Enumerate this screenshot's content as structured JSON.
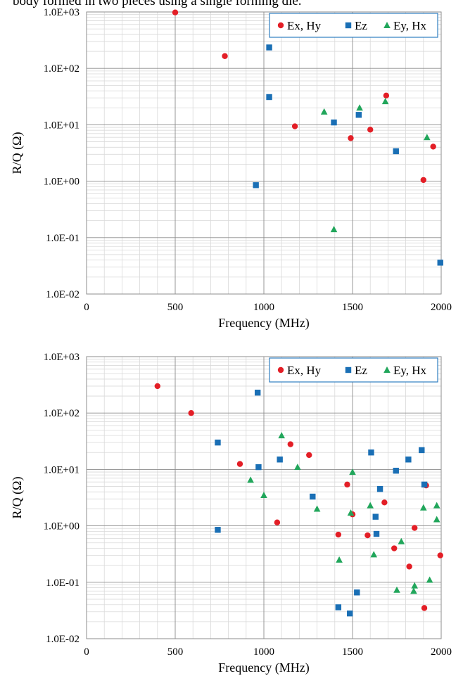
{
  "page_text": {
    "top_line": "body formed in two pieces using a single forming die."
  },
  "colors": {
    "ex_hy": "#e31e26",
    "ez": "#1a6fb5",
    "ey_hx": "#21a65b",
    "legend_border": "#2f7ec1",
    "grid_minor": "#d9d9d9",
    "grid_major": "#8c8c8c"
  },
  "chart_data": [
    {
      "type": "scatter",
      "xlabel": "Frequency (MHz)",
      "ylabel": "R/Q (Ω)",
      "xlim": [
        0,
        2000
      ],
      "ylim": [
        0.01,
        1000
      ],
      "y_scale": "log",
      "x_ticks": [
        "0",
        "500",
        "1000",
        "1500",
        "2000"
      ],
      "y_ticks": [
        "1.0E-02",
        "1.0E-01",
        "1.0E+00",
        "1.0E+01",
        "1.0E+02",
        "1.0E+03"
      ],
      "grid": true,
      "legend_position": "top-right",
      "series": [
        {
          "name": "Ex, Hy",
          "marker": "circle",
          "points": [
            [
              500,
              980
            ],
            [
              780,
              165
            ],
            [
              1175,
              9.4
            ],
            [
              1490,
              5.8
            ],
            [
              1600,
              8.2
            ],
            [
              1690,
              33
            ],
            [
              1900,
              1.05
            ],
            [
              1955,
              4.1
            ]
          ]
        },
        {
          "name": "Ez",
          "marker": "square",
          "points": [
            [
              955,
              0.85
            ],
            [
              1030,
              235
            ],
            [
              1030,
              31
            ],
            [
              1395,
              11
            ],
            [
              1535,
              15
            ],
            [
              1745,
              3.4
            ],
            [
              1995,
              0.036
            ]
          ]
        },
        {
          "name": "Ey, Hx",
          "marker": "triangle",
          "points": [
            [
              1340,
              17
            ],
            [
              1395,
              0.14
            ],
            [
              1540,
              20
            ],
            [
              1685,
              26
            ],
            [
              1920,
              6
            ]
          ]
        }
      ]
    },
    {
      "type": "scatter",
      "xlabel": "Frequency (MHz)",
      "ylabel": "R/Q (Ω)",
      "xlim": [
        0,
        2000
      ],
      "ylim": [
        0.01,
        1000
      ],
      "y_scale": "log",
      "x_ticks": [
        "0",
        "500",
        "1000",
        "1500",
        "2000"
      ],
      "y_ticks": [
        "1.0E-02",
        "1.0E-01",
        "1.0E+00",
        "1.0E+01",
        "1.0E+02",
        "1.0E+03"
      ],
      "grid": true,
      "legend_position": "top-right",
      "series": [
        {
          "name": "Ex, Hy",
          "marker": "circle",
          "points": [
            [
              400,
              300
            ],
            [
              590,
              100
            ],
            [
              865,
              12.5
            ],
            [
              1075,
              1.15
            ],
            [
              1150,
              28
            ],
            [
              1255,
              18
            ],
            [
              1420,
              0.7
            ],
            [
              1470,
              5.4
            ],
            [
              1500,
              1.6
            ],
            [
              1585,
              0.68
            ],
            [
              1680,
              2.6
            ],
            [
              1735,
              0.4
            ],
            [
              1820,
              0.19
            ],
            [
              1850,
              0.92
            ],
            [
              1905,
              0.035
            ],
            [
              1915,
              5.2
            ],
            [
              1995,
              0.3
            ]
          ]
        },
        {
          "name": "Ez",
          "marker": "square",
          "points": [
            [
              740,
              30
            ],
            [
              740,
              0.85
            ],
            [
              965,
              230
            ],
            [
              970,
              11
            ],
            [
              1090,
              15
            ],
            [
              1275,
              3.3
            ],
            [
              1420,
              0.036
            ],
            [
              1485,
              0.028
            ],
            [
              1525,
              0.066
            ],
            [
              1605,
              20
            ],
            [
              1630,
              1.45
            ],
            [
              1635,
              0.72
            ],
            [
              1655,
              4.5
            ],
            [
              1745,
              9.5
            ],
            [
              1815,
              15
            ],
            [
              1890,
              22
            ],
            [
              1905,
              5.4
            ]
          ]
        },
        {
          "name": "Ey, Hx",
          "marker": "triangle",
          "points": [
            [
              925,
              6.5
            ],
            [
              1000,
              3.5
            ],
            [
              1100,
              40
            ],
            [
              1190,
              11
            ],
            [
              1300,
              2
            ],
            [
              1425,
              0.25
            ],
            [
              1490,
              1.7
            ],
            [
              1500,
              9
            ],
            [
              1600,
              2.3
            ],
            [
              1620,
              0.31
            ],
            [
              1750,
              0.073
            ],
            [
              1775,
              0.53
            ],
            [
              1845,
              0.07
            ],
            [
              1850,
              0.087
            ],
            [
              1900,
              2.1
            ],
            [
              1935,
              0.11
            ],
            [
              1975,
              2.3
            ],
            [
              1975,
              1.3
            ]
          ]
        }
      ]
    }
  ]
}
